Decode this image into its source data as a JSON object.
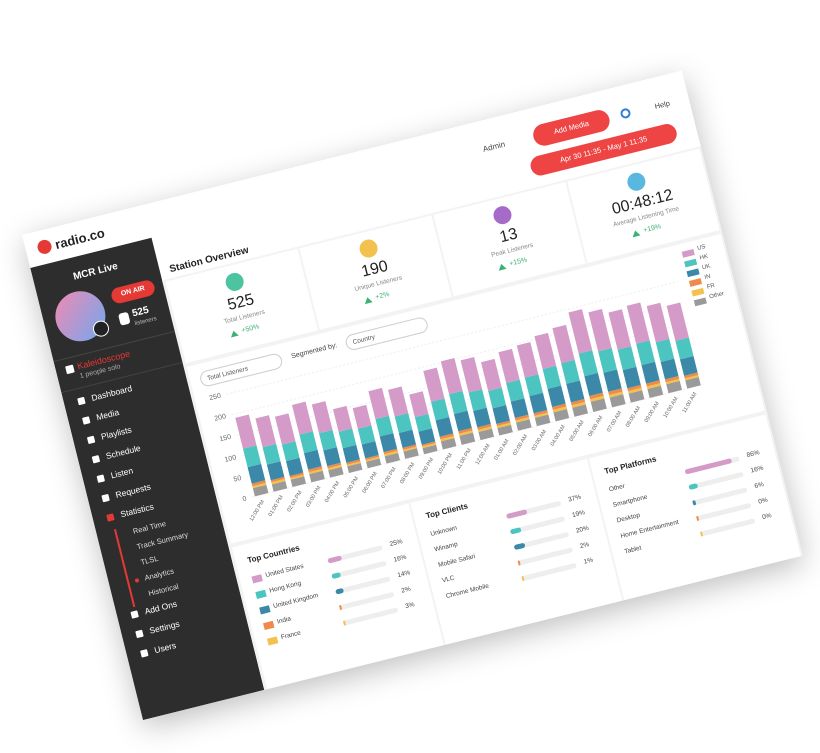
{
  "logo": "radio.co",
  "header": {
    "admin": "Admin",
    "add_media": "Add Media",
    "help": "Help",
    "date_range": "Apr 30 11:35 - May 1 11:35"
  },
  "sidebar": {
    "station": "MCR Live",
    "on_air": "ON AIR",
    "listeners": "525",
    "listeners_label": "listeners",
    "now_playing": "Kaleidoscope",
    "now_playing_sub": "1 people solo",
    "menu": [
      "Dashboard",
      "Media",
      "Playlists",
      "Schedule",
      "Listen",
      "Requests",
      "Statistics"
    ],
    "submenu": [
      "Real Time",
      "Track Summary",
      "TLSL",
      "Analytics",
      "Historical"
    ],
    "menu2": [
      "Add Ons",
      "Settings",
      "Users"
    ]
  },
  "overview": {
    "title": "Station Overview",
    "stats": [
      {
        "value": "525",
        "label": "Total Listeners",
        "change": "+50%",
        "color": "#4cc4a0"
      },
      {
        "value": "190",
        "label": "Unique Listeners",
        "change": "+2%",
        "color": "#f2c14e"
      },
      {
        "value": "13",
        "label": "Peak Listeners",
        "change": "+15%",
        "color": "#a66bc9"
      },
      {
        "value": "00:48:12",
        "label": "Average Listening Time",
        "change": "+19%",
        "color": "#5ab8e0"
      }
    ]
  },
  "controls": {
    "metric": "Total Listeners",
    "segment_label": "Segmented by:",
    "segment": "Country"
  },
  "chart_data": {
    "type": "bar",
    "stacked": true,
    "categories": [
      "12:00 PM",
      "01:00 PM",
      "02:00 PM",
      "03:00 PM",
      "04:00 PM",
      "05:00 PM",
      "06:00 PM",
      "07:00 PM",
      "08:00 PM",
      "09:00 PM",
      "10:00 PM",
      "11:00 PM",
      "12:00 AM",
      "01:00 AM",
      "02:00 AM",
      "03:00 AM",
      "04:00 AM",
      "05:00 AM",
      "06:00 AM",
      "07:00 AM",
      "08:00 AM",
      "09:00 AM",
      "10:00 AM",
      "11:00 AM"
    ],
    "series": [
      {
        "name": "Other",
        "color": "#9a9a9a",
        "values": [
          20,
          18,
          18,
          20,
          18,
          16,
          16,
          18,
          18,
          15,
          20,
          22,
          20,
          18,
          20,
          20,
          22,
          22,
          25,
          24,
          22,
          22,
          22,
          20
        ]
      },
      {
        "name": "FR",
        "color": "#f2c14e",
        "values": [
          5,
          5,
          4,
          5,
          5,
          4,
          4,
          5,
          4,
          4,
          5,
          5,
          5,
          5,
          5,
          5,
          6,
          6,
          6,
          6,
          6,
          6,
          5,
          5
        ]
      },
      {
        "name": "IN",
        "color": "#f08a4b",
        "values": [
          6,
          5,
          5,
          6,
          5,
          5,
          4,
          5,
          5,
          4,
          6,
          6,
          6,
          5,
          6,
          6,
          7,
          7,
          8,
          8,
          7,
          7,
          7,
          6
        ]
      },
      {
        "name": "UK",
        "color": "#3b88a8",
        "values": [
          40,
          38,
          36,
          40,
          38,
          35,
          34,
          38,
          36,
          32,
          40,
          42,
          40,
          38,
          40,
          42,
          44,
          45,
          48,
          46,
          44,
          45,
          42,
          40
        ]
      },
      {
        "name": "HK",
        "color": "#4cc4c0",
        "values": [
          45,
          42,
          40,
          45,
          42,
          40,
          38,
          42,
          40,
          35,
          45,
          48,
          45,
          42,
          45,
          45,
          48,
          50,
          55,
          52,
          50,
          52,
          48,
          45
        ]
      },
      {
        "name": "US",
        "color": "#d49ac8",
        "values": [
          75,
          70,
          68,
          72,
          70,
          55,
          50,
          68,
          65,
          55,
          75,
          80,
          78,
          70,
          75,
          78,
          80,
          85,
          100,
          95,
          90,
          92,
          88,
          85
        ]
      }
    ],
    "ylim": [
      0,
      250
    ],
    "yticks": [
      0,
      50,
      100,
      150,
      200,
      250
    ]
  },
  "tables": [
    {
      "title": "Top Countries",
      "rows": [
        {
          "name": "United States",
          "value": 25,
          "value_label": "25%",
          "color": "#d49ac8"
        },
        {
          "name": "Hong Kong",
          "value": 16,
          "value_label": "16%",
          "color": "#4cc4c0"
        },
        {
          "name": "United Kingdom",
          "value": 14,
          "value_label": "14%",
          "color": "#3b88a8"
        },
        {
          "name": "India",
          "value": 2,
          "value_label": "2%",
          "color": "#f08a4b"
        },
        {
          "name": "France",
          "value": 3,
          "value_label": "3%",
          "color": "#f2c14e"
        }
      ]
    },
    {
      "title": "Top Clients",
      "rows": [
        {
          "name": "Unknown",
          "value": 37,
          "value_label": "37%",
          "color": "#d49ac8"
        },
        {
          "name": "Winamp",
          "value": 19,
          "value_label": "19%",
          "color": "#4cc4c0"
        },
        {
          "name": "Mobile Safari",
          "value": 20,
          "value_label": "20%",
          "color": "#3b88a8"
        },
        {
          "name": "VLC",
          "value": 2,
          "value_label": "2%",
          "color": "#f08a4b"
        },
        {
          "name": "Chrome Mobile",
          "value": 1,
          "value_label": "1%",
          "color": "#f2c14e"
        }
      ]
    },
    {
      "title": "Top Platforms",
      "rows": [
        {
          "name": "Other",
          "value": 86,
          "value_label": "86%",
          "color": "#d49ac8"
        },
        {
          "name": "Smartphone",
          "value": 16,
          "value_label": "16%",
          "color": "#4cc4c0"
        },
        {
          "name": "Desktop",
          "value": 6,
          "value_label": "6%",
          "color": "#3b88a8"
        },
        {
          "name": "Home Entertainment",
          "value": 0,
          "value_label": "0%",
          "color": "#f08a4b"
        },
        {
          "name": "Tablet",
          "value": 0,
          "value_label": "0%",
          "color": "#f2c14e"
        }
      ]
    }
  ]
}
